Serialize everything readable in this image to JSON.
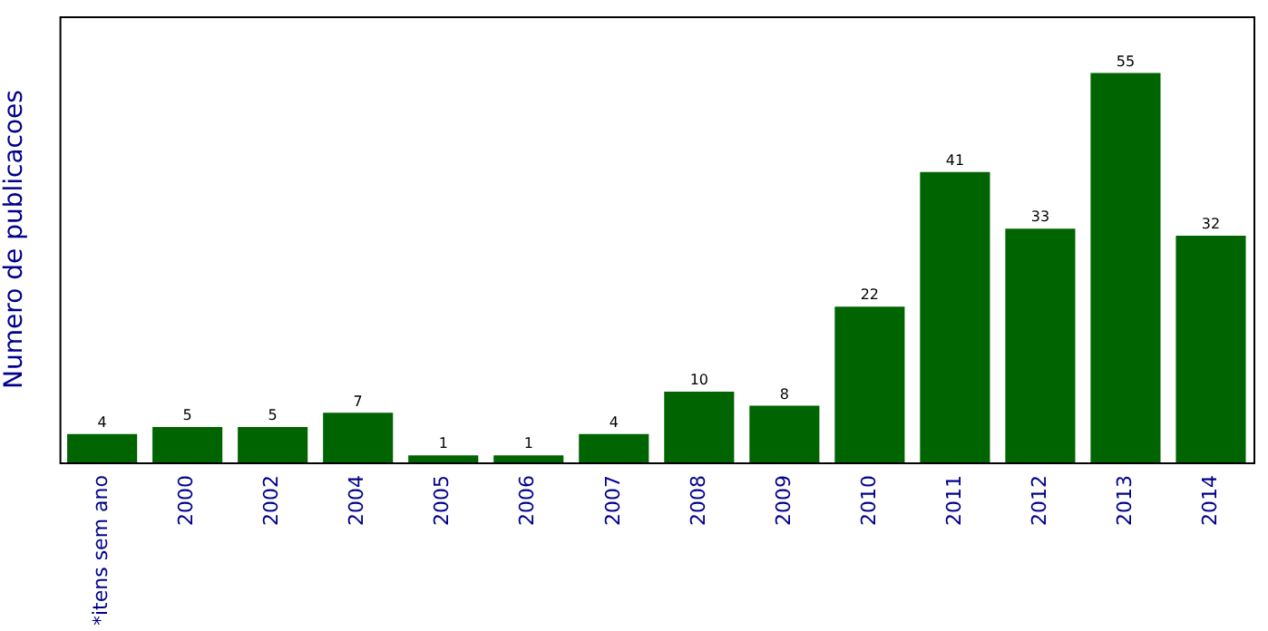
{
  "chart_data": {
    "type": "bar",
    "ylabel": "Numero de publicacoes",
    "categories": [
      "*itens sem ano",
      "2000",
      "2002",
      "2004",
      "2005",
      "2006",
      "2007",
      "2008",
      "2009",
      "2010",
      "2011",
      "2012",
      "2013",
      "2014"
    ],
    "values": [
      4,
      5,
      5,
      7,
      1,
      1,
      4,
      10,
      8,
      22,
      41,
      33,
      55,
      32
    ],
    "color": "#006400",
    "ylim": [
      0,
      63
    ],
    "tick_labels": "x",
    "data_labels": true,
    "grid": false,
    "legend": false
  }
}
